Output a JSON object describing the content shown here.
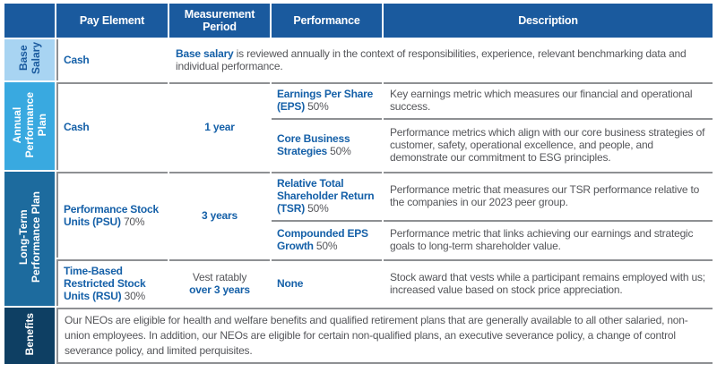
{
  "header": {
    "pay_element": "Pay Element",
    "measurement_period": "Measurement Period",
    "performance": "Performance",
    "description": "Description"
  },
  "sections": {
    "base_salary": {
      "label": "Base\nSalary",
      "pay": "Cash",
      "desc_bold": "Base salary",
      "desc_rest": " is reviewed annually in the context of responsibilities, experience, relevant benchmarking data and individual performance."
    },
    "annual": {
      "label": "Annual\nPerformance\nPlan",
      "pay": "Cash",
      "period": "1 year",
      "rows": [
        {
          "perf_bold": "Earnings Per Share (EPS)",
          "perf_pct": " 50%",
          "desc": "Key earnings metric which measures our financial and operational success."
        },
        {
          "perf_bold": "Core Business Strategies",
          "perf_pct": " 50%",
          "desc": "Performance metrics which align with our core business strategies of customer, safety, operational excellence, and people, and demonstrate our commitment to ESG principles."
        }
      ]
    },
    "long_term": {
      "label": "Long-Term\nPerformance Plan",
      "psu": {
        "pay_bold": "Performance Stock Units (PSU)",
        "pay_pct": " 70%",
        "period": "3 years",
        "rows": [
          {
            "perf_bold": "Relative Total Shareholder Return (TSR)",
            "perf_pct": " 50%",
            "desc": "Performance metric that measures our TSR performance relative to the companies in our 2023 peer group."
          },
          {
            "perf_bold": "Compounded EPS Growth",
            "perf_pct": " 50%",
            "desc": "Performance metric that links achieving our earnings and strategic goals to long-term shareholder value."
          }
        ]
      },
      "rsu": {
        "pay_bold": "Time-Based Restricted Stock Units (RSU)",
        "pay_pct": " 30%",
        "period_line1": "Vest ratably",
        "period_line2": "over 3 years",
        "perf": "None",
        "desc": "Stock award that vests while a participant remains employed with us; increased value based on stock price appreciation."
      }
    },
    "benefits": {
      "label": "Benefits",
      "desc": "Our NEOs are eligible for health and welfare benefits and qualified retirement plans that are generally available to all other salaried, non-union employees. In addition, our NEOs are eligible for certain non-qualified plans, an executive severance policy, a change of control severance policy, and limited perquisites."
    }
  },
  "colors": {
    "header_blue": "#1A5A9E",
    "base_salary_label_bg": "#A8D4F2",
    "annual_label_bg": "#39A9E0",
    "long_term_label_bg": "#1D6B9E",
    "benefits_label_bg": "#0E3F63",
    "bold_text_blue": "#1560A8",
    "body_text_gray": "#55565A",
    "divider_gray": "#8E9093"
  }
}
